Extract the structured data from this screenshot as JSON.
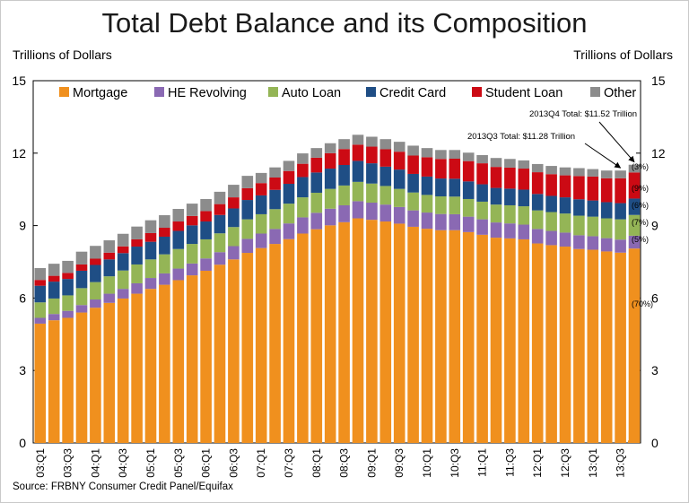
{
  "title": "Total Debt Balance and its Composition",
  "unit_left": "Trillions of Dollars",
  "unit_right": "Trillions of Dollars",
  "source": "Source: FRBNY Consumer Credit Panel/Equifax",
  "colors": {
    "Mortgage": "#f0901e",
    "HE Revolving": "#8a69b3",
    "Auto Loan": "#94b556",
    "Credit Card": "#1f4e85",
    "Student Loan": "#cc0a14",
    "Other": "#8c8c8c"
  },
  "chart_data": {
    "type": "bar",
    "stacked": true,
    "title": "Total Debt Balance and its Composition",
    "ylabel": "Trillions of Dollars",
    "y2label": "Trillions of Dollars",
    "ylim": [
      0,
      15
    ],
    "yticks": [
      0,
      3,
      6,
      9,
      12,
      15
    ],
    "legend_position": "top",
    "categories": [
      "03:Q1",
      "03:Q2",
      "03:Q3",
      "03:Q4",
      "04:Q1",
      "04:Q2",
      "04:Q3",
      "04:Q4",
      "05:Q1",
      "05:Q2",
      "05:Q3",
      "05:Q4",
      "06:Q1",
      "06:Q2",
      "06:Q3",
      "06:Q4",
      "07:Q1",
      "07:Q2",
      "07:Q3",
      "07:Q4",
      "08:Q1",
      "08:Q2",
      "08:Q3",
      "08:Q4",
      "09:Q1",
      "09:Q2",
      "09:Q3",
      "09:Q4",
      "10:Q1",
      "10:Q2",
      "10:Q3",
      "10:Q4",
      "11:Q1",
      "11:Q2",
      "11:Q3",
      "11:Q4",
      "12:Q1",
      "12:Q2",
      "12:Q3",
      "12:Q4",
      "13:Q1",
      "13:Q2",
      "13:Q3",
      "13:Q4"
    ],
    "tick_labels": [
      "03:Q1",
      "03:Q3",
      "04:Q1",
      "04:Q3",
      "05:Q1",
      "05:Q3",
      "06:Q1",
      "06:Q3",
      "07:Q1",
      "07:Q3",
      "08:Q1",
      "08:Q3",
      "09:Q1",
      "09:Q3",
      "10:Q1",
      "10:Q3",
      "11:Q1",
      "11:Q3",
      "12:Q1",
      "12:Q3",
      "13:Q1",
      "13:Q3"
    ],
    "series": [
      {
        "name": "Mortgage",
        "values": [
          4.94,
          5.08,
          5.18,
          5.4,
          5.6,
          5.8,
          5.98,
          6.18,
          6.38,
          6.55,
          6.74,
          6.94,
          7.13,
          7.38,
          7.6,
          7.87,
          8.07,
          8.24,
          8.44,
          8.67,
          8.85,
          9.01,
          9.14,
          9.3,
          9.24,
          9.17,
          9.08,
          8.95,
          8.87,
          8.81,
          8.81,
          8.73,
          8.62,
          8.5,
          8.47,
          8.43,
          8.26,
          8.19,
          8.13,
          8.03,
          8.0,
          7.93,
          7.88,
          8.05
        ]
      },
      {
        "name": "HE Revolving",
        "values": [
          0.24,
          0.26,
          0.29,
          0.31,
          0.34,
          0.38,
          0.4,
          0.43,
          0.45,
          0.47,
          0.48,
          0.49,
          0.51,
          0.52,
          0.55,
          0.58,
          0.6,
          0.62,
          0.65,
          0.67,
          0.68,
          0.69,
          0.7,
          0.71,
          0.71,
          0.7,
          0.69,
          0.68,
          0.67,
          0.67,
          0.66,
          0.64,
          0.64,
          0.63,
          0.62,
          0.61,
          0.6,
          0.59,
          0.58,
          0.57,
          0.56,
          0.55,
          0.54,
          0.53
        ]
      },
      {
        "name": "Auto Loan",
        "values": [
          0.64,
          0.64,
          0.64,
          0.7,
          0.72,
          0.72,
          0.76,
          0.78,
          0.77,
          0.79,
          0.81,
          0.81,
          0.79,
          0.78,
          0.79,
          0.81,
          0.8,
          0.82,
          0.82,
          0.83,
          0.83,
          0.82,
          0.82,
          0.8,
          0.79,
          0.77,
          0.75,
          0.74,
          0.73,
          0.73,
          0.73,
          0.73,
          0.73,
          0.74,
          0.75,
          0.76,
          0.77,
          0.78,
          0.79,
          0.81,
          0.81,
          0.82,
          0.84,
          0.86
        ]
      },
      {
        "name": "Credit Card",
        "values": [
          0.69,
          0.7,
          0.68,
          0.72,
          0.71,
          0.7,
          0.72,
          0.74,
          0.73,
          0.73,
          0.75,
          0.77,
          0.74,
          0.76,
          0.77,
          0.8,
          0.78,
          0.8,
          0.82,
          0.84,
          0.84,
          0.84,
          0.85,
          0.87,
          0.84,
          0.8,
          0.8,
          0.77,
          0.76,
          0.74,
          0.74,
          0.73,
          0.72,
          0.69,
          0.69,
          0.69,
          0.68,
          0.67,
          0.67,
          0.68,
          0.67,
          0.67,
          0.67,
          0.68
        ]
      },
      {
        "name": "Student Loan",
        "values": [
          0.24,
          0.24,
          0.25,
          0.26,
          0.26,
          0.28,
          0.28,
          0.3,
          0.36,
          0.37,
          0.39,
          0.39,
          0.43,
          0.45,
          0.46,
          0.49,
          0.51,
          0.51,
          0.53,
          0.55,
          0.61,
          0.64,
          0.66,
          0.67,
          0.69,
          0.72,
          0.74,
          0.76,
          0.8,
          0.81,
          0.83,
          0.84,
          0.87,
          0.87,
          0.87,
          0.87,
          0.9,
          0.9,
          0.91,
          0.96,
          0.99,
          0.99,
          1.03,
          1.08
        ]
      },
      {
        "name": "Other",
        "values": [
          0.49,
          0.5,
          0.5,
          0.53,
          0.53,
          0.51,
          0.52,
          0.53,
          0.53,
          0.52,
          0.52,
          0.51,
          0.5,
          0.51,
          0.52,
          0.51,
          0.42,
          0.42,
          0.42,
          0.43,
          0.4,
          0.41,
          0.41,
          0.41,
          0.41,
          0.42,
          0.41,
          0.41,
          0.38,
          0.37,
          0.36,
          0.35,
          0.34,
          0.37,
          0.36,
          0.34,
          0.34,
          0.34,
          0.33,
          0.33,
          0.31,
          0.32,
          0.32,
          0.32
        ]
      }
    ],
    "right_annotations": [
      "(3%)",
      "(9%)",
      "(6%)",
      "(7%)",
      "(5%)",
      "(70%)"
    ],
    "callouts": [
      {
        "text": "2013Q4 Total: $11.52 Trillion"
      },
      {
        "text": "2013Q3 Total: $11.28 Trillion"
      }
    ]
  }
}
